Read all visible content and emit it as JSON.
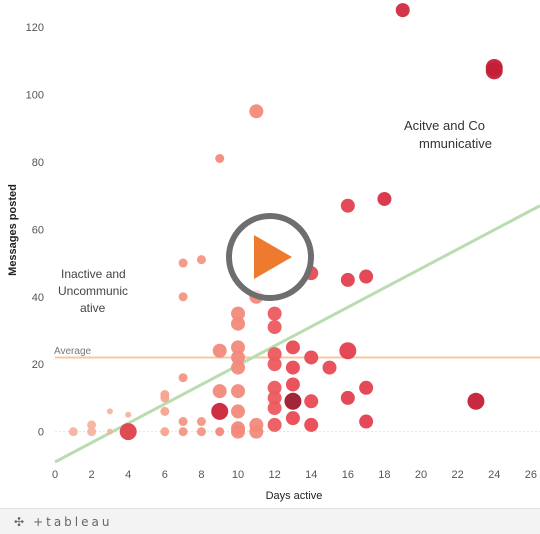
{
  "chart_data": {
    "type": "scatter",
    "xlabel": "Days active",
    "ylabel": "Messages posted",
    "xlim": [
      0,
      26.5
    ],
    "ylim": [
      -9,
      128
    ],
    "x_ticks": [
      0,
      2,
      4,
      6,
      8,
      10,
      12,
      14,
      16,
      18,
      20,
      22,
      24,
      26
    ],
    "y_ticks": [
      0,
      20,
      40,
      60,
      80,
      100,
      120
    ],
    "grid": false,
    "reference_line": {
      "label": "Average",
      "y": 22,
      "color": "#f5c9a0"
    },
    "trend_line": {
      "from": [
        0,
        -9
      ],
      "to": [
        26.5,
        67
      ],
      "color": "#b9dcb0"
    },
    "annotations": {
      "top_right": [
        "Acitve and Co",
        "mmunicative"
      ],
      "left": [
        "Inactive and",
        "Uncommunic",
        "ative"
      ]
    },
    "points": [
      {
        "x": 1,
        "y": 0,
        "size": 1,
        "color": "#f6b4a0"
      },
      {
        "x": 2,
        "y": 0,
        "size": 1,
        "color": "#f6b4a0"
      },
      {
        "x": 2,
        "y": 2,
        "size": 1,
        "color": "#f6b4a0"
      },
      {
        "x": 3,
        "y": 0,
        "size": 0,
        "color": "#f6b4a0"
      },
      {
        "x": 3,
        "y": 6,
        "size": 0,
        "color": "#f6b4a0"
      },
      {
        "x": 4,
        "y": 5,
        "size": 0,
        "color": "#f6b4a0"
      },
      {
        "x": 4,
        "y": 0,
        "size": 3,
        "color": "#de4049"
      },
      {
        "x": 6,
        "y": 0,
        "size": 1,
        "color": "#f6a48e"
      },
      {
        "x": 6,
        "y": 6,
        "size": 1,
        "color": "#f6a48e"
      },
      {
        "x": 6,
        "y": 10,
        "size": 1,
        "color": "#f6a48e"
      },
      {
        "x": 6,
        "y": 11,
        "size": 1,
        "color": "#f6a48e"
      },
      {
        "x": 7,
        "y": 0,
        "size": 1,
        "color": "#f39684"
      },
      {
        "x": 7,
        "y": 3,
        "size": 1,
        "color": "#f39684"
      },
      {
        "x": 7,
        "y": 16,
        "size": 1,
        "color": "#f39684"
      },
      {
        "x": 7,
        "y": 40,
        "size": 1,
        "color": "#f39684"
      },
      {
        "x": 7,
        "y": 50,
        "size": 1,
        "color": "#f39684"
      },
      {
        "x": 8,
        "y": 0,
        "size": 1,
        "color": "#f39684"
      },
      {
        "x": 8,
        "y": 3,
        "size": 1,
        "color": "#f39684"
      },
      {
        "x": 8,
        "y": 51,
        "size": 1,
        "color": "#f39684"
      },
      {
        "x": 9,
        "y": 0,
        "size": 1,
        "color": "#f28a7b"
      },
      {
        "x": 9,
        "y": 6,
        "size": 3,
        "color": "#cb2438"
      },
      {
        "x": 9,
        "y": 12,
        "size": 2,
        "color": "#f28a7b"
      },
      {
        "x": 9,
        "y": 24,
        "size": 2,
        "color": "#f28a7b"
      },
      {
        "x": 9,
        "y": 81,
        "size": 1,
        "color": "#f28a7b"
      },
      {
        "x": 10,
        "y": 0,
        "size": 2,
        "color": "#f28a7b"
      },
      {
        "x": 10,
        "y": 1,
        "size": 2,
        "color": "#f28a7b"
      },
      {
        "x": 10,
        "y": 6,
        "size": 2,
        "color": "#f28a7b"
      },
      {
        "x": 10,
        "y": 12,
        "size": 2,
        "color": "#f28a7b"
      },
      {
        "x": 10,
        "y": 19,
        "size": 2,
        "color": "#f28a7b"
      },
      {
        "x": 10,
        "y": 22,
        "size": 2,
        "color": "#f28a7b"
      },
      {
        "x": 10,
        "y": 25,
        "size": 2,
        "color": "#f28a7b"
      },
      {
        "x": 10,
        "y": 32,
        "size": 2,
        "color": "#f28a7b"
      },
      {
        "x": 10,
        "y": 35,
        "size": 2,
        "color": "#f28a7b"
      },
      {
        "x": 11,
        "y": 0,
        "size": 2,
        "color": "#f28a7b"
      },
      {
        "x": 11,
        "y": 2,
        "size": 2,
        "color": "#f28a7b"
      },
      {
        "x": 11,
        "y": 40,
        "size": 2,
        "color": "#f28a7b"
      },
      {
        "x": 11,
        "y": 95,
        "size": 2,
        "color": "#f28a7b"
      },
      {
        "x": 12,
        "y": 2,
        "size": 2,
        "color": "#ec5a5f"
      },
      {
        "x": 12,
        "y": 7,
        "size": 2,
        "color": "#ec5a5f"
      },
      {
        "x": 12,
        "y": 10,
        "size": 2,
        "color": "#ec5a5f"
      },
      {
        "x": 12,
        "y": 13,
        "size": 2,
        "color": "#ec5a5f"
      },
      {
        "x": 12,
        "y": 20,
        "size": 2,
        "color": "#ec5a5f"
      },
      {
        "x": 12,
        "y": 23,
        "size": 2,
        "color": "#ec5a5f"
      },
      {
        "x": 12,
        "y": 31,
        "size": 2,
        "color": "#ec5a5f"
      },
      {
        "x": 12,
        "y": 35,
        "size": 2,
        "color": "#ec5a5f"
      },
      {
        "x": 13,
        "y": 4,
        "size": 2,
        "color": "#e94a55"
      },
      {
        "x": 13,
        "y": 9,
        "size": 3,
        "color": "#9d1a2e"
      },
      {
        "x": 13,
        "y": 14,
        "size": 2,
        "color": "#e94a55"
      },
      {
        "x": 13,
        "y": 19,
        "size": 2,
        "color": "#e94a55"
      },
      {
        "x": 13,
        "y": 25,
        "size": 2,
        "color": "#e94a55"
      },
      {
        "x": 14,
        "y": 2,
        "size": 2,
        "color": "#e94a55"
      },
      {
        "x": 14,
        "y": 9,
        "size": 2,
        "color": "#e94a55"
      },
      {
        "x": 14,
        "y": 22,
        "size": 2,
        "color": "#e94a55"
      },
      {
        "x": 14,
        "y": 47,
        "size": 2,
        "color": "#e94a55"
      },
      {
        "x": 15,
        "y": 19,
        "size": 2,
        "color": "#e94a55"
      },
      {
        "x": 16,
        "y": 10,
        "size": 2,
        "color": "#e23f4d"
      },
      {
        "x": 16,
        "y": 24,
        "size": 3,
        "color": "#e23f4d"
      },
      {
        "x": 16,
        "y": 45,
        "size": 2,
        "color": "#e23f4d"
      },
      {
        "x": 16,
        "y": 67,
        "size": 2,
        "color": "#e23f4d"
      },
      {
        "x": 17,
        "y": 3,
        "size": 2,
        "color": "#e23f4d"
      },
      {
        "x": 17,
        "y": 13,
        "size": 2,
        "color": "#e23f4d"
      },
      {
        "x": 17,
        "y": 46,
        "size": 2,
        "color": "#e23f4d"
      },
      {
        "x": 18,
        "y": 69,
        "size": 2,
        "color": "#d93045"
      },
      {
        "x": 19,
        "y": 125,
        "size": 2,
        "color": "#d12a40"
      },
      {
        "x": 23,
        "y": 9,
        "size": 3,
        "color": "#c41f36"
      },
      {
        "x": 24,
        "y": 107,
        "size": 3,
        "color": "#c41f36"
      },
      {
        "x": 24,
        "y": 108,
        "size": 3,
        "color": "#c41f36"
      }
    ]
  },
  "footer": {
    "brand": "+tableau"
  }
}
